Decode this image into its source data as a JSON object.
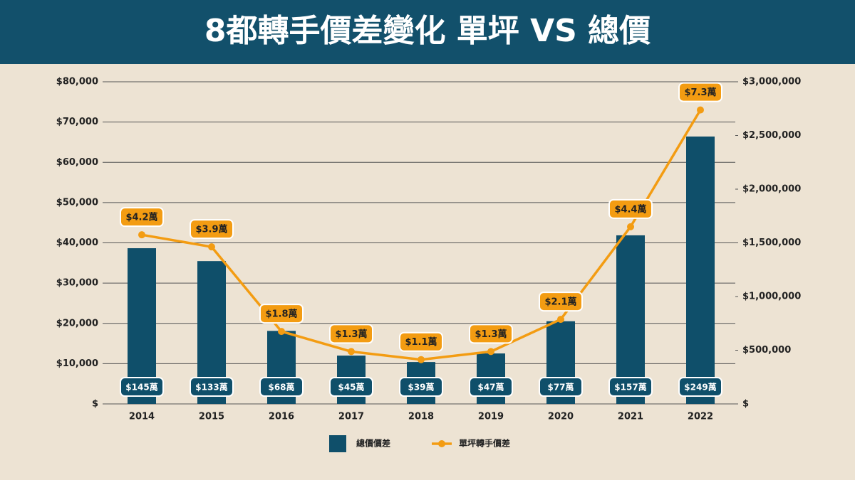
{
  "chart_data": {
    "type": "bar",
    "title": "8都轉手價差變化 單坪 VS 總價",
    "categories": [
      "2014",
      "2015",
      "2016",
      "2017",
      "2018",
      "2019",
      "2020",
      "2021",
      "2022"
    ],
    "series": [
      {
        "name": "總價價差",
        "type": "bar",
        "axis": "y2",
        "color": "#0f4f6a",
        "values": [
          1450000,
          1330000,
          680000,
          450000,
          390000,
          470000,
          770000,
          1570000,
          2490000
        ],
        "value_labels": [
          "$145萬",
          "$133萬",
          "$68萬",
          "$45萬",
          "$39萬",
          "$47萬",
          "$77萬",
          "$157萬",
          "$249萬"
        ]
      },
      {
        "name": "單坪轉手價差",
        "type": "line",
        "axis": "y",
        "color": "#f39c12",
        "values": [
          42000,
          39000,
          18000,
          13000,
          11000,
          13000,
          21000,
          44000,
          73000
        ],
        "value_labels": [
          "$4.2萬",
          "$3.9萬",
          "$1.8萬",
          "$1.3萬",
          "$1.1萬",
          "$1.3萬",
          "$2.1萬",
          "$4.4萬",
          "$7.3萬"
        ]
      }
    ],
    "ylim": [
      0,
      80000
    ],
    "yticks": [
      {
        "value": 0,
        "label": "$"
      },
      {
        "value": 10000,
        "label": "$10,000"
      },
      {
        "value": 20000,
        "label": "$20,000"
      },
      {
        "value": 30000,
        "label": "$30,000"
      },
      {
        "value": 40000,
        "label": "$40,000"
      },
      {
        "value": 50000,
        "label": "$50,000"
      },
      {
        "value": 60000,
        "label": "$60,000"
      },
      {
        "value": 70000,
        "label": "$70,000"
      },
      {
        "value": 80000,
        "label": "$80,000"
      }
    ],
    "y2lim": [
      0,
      3000000
    ],
    "y2ticks": [
      {
        "value": 0,
        "label": "$"
      },
      {
        "value": 500000,
        "label": "$500,000"
      },
      {
        "value": 1000000,
        "label": "$1,000,000"
      },
      {
        "value": 1500000,
        "label": "$1,500,000"
      },
      {
        "value": 2000000,
        "label": "$2,000,000"
      },
      {
        "value": 2500000,
        "label": "$2,500,000"
      },
      {
        "value": 3000000,
        "label": "$3,000,000"
      }
    ],
    "grid": true,
    "legend": "bottom"
  }
}
